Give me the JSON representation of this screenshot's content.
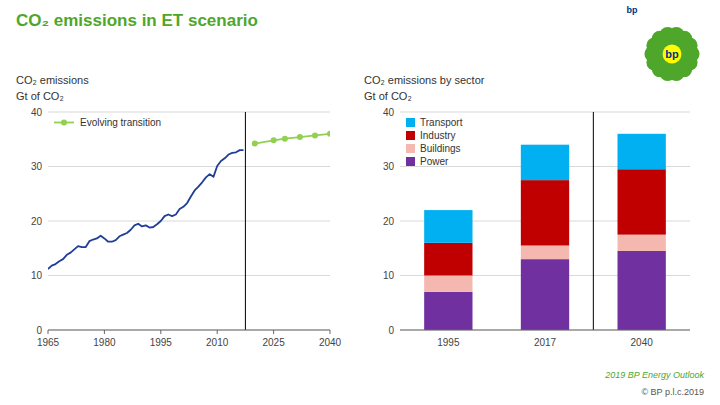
{
  "title": "CO₂ emissions in ET scenario",
  "annotations": [
    "bp",
    "bp",
    "2019 BP Energy Outlook",
    "© BP p.l.c.2019"
  ],
  "chart_data": [
    {
      "type": "line",
      "subtitle": "CO₂ emissions",
      "ylabel": "Gt of CO₂",
      "series": [
        {
          "color": "#1f3d99",
          "x": [
            1965,
            1966,
            1967,
            1968,
            1969,
            1970,
            1971,
            1972,
            1973,
            1974,
            1975,
            1976,
            1977,
            1978,
            1979,
            1980,
            1981,
            1982,
            1983,
            1984,
            1985,
            1986,
            1987,
            1988,
            1989,
            1990,
            1991,
            1992,
            1993,
            1994,
            1995,
            1996,
            1997,
            1998,
            1999,
            2000,
            2001,
            2002,
            2003,
            2004,
            2005,
            2006,
            2007,
            2008,
            2009,
            2010,
            2011,
            2012,
            2013,
            2014,
            2015,
            2016,
            2017
          ],
          "values": [
            11.2,
            11.8,
            12.1,
            12.6,
            13.0,
            13.8,
            14.2,
            14.8,
            15.4,
            15.2,
            15.2,
            16.3,
            16.6,
            16.8,
            17.3,
            16.8,
            16.2,
            16.2,
            16.5,
            17.2,
            17.5,
            17.8,
            18.4,
            19.2,
            19.5,
            19.0,
            19.2,
            18.8,
            18.9,
            19.4,
            20.0,
            20.9,
            21.2,
            20.9,
            21.2,
            22.2,
            22.6,
            23.3,
            24.5,
            25.6,
            26.3,
            27.1,
            28.0,
            28.6,
            28.1,
            30.1,
            31.0,
            31.5,
            32.2,
            32.5,
            32.6,
            33.0,
            33.0
          ]
        },
        {
          "name": "Evolving transition",
          "color": "#92d050",
          "marker": "circle",
          "x": [
            2020,
            2025,
            2028,
            2032,
            2036,
            2040
          ],
          "values": [
            34.2,
            34.8,
            35.1,
            35.4,
            35.7,
            36.0
          ]
        }
      ],
      "vline_x": 2017.5,
      "xlim": [
        1965,
        2040
      ],
      "xticks": [
        1965,
        1980,
        1995,
        2010,
        2025,
        2040
      ],
      "ylim": [
        0,
        40
      ],
      "yticks": [
        0,
        10,
        20,
        30,
        40
      ],
      "grid": true,
      "legend": "upper left"
    },
    {
      "type": "bar",
      "subtitle": "CO₂ emissions by sector",
      "ylabel": "Gt of CO₂",
      "stacked": true,
      "categories": [
        "1995",
        "2017",
        "2040"
      ],
      "series": [
        {
          "name": "Power",
          "color": "#7030a0",
          "values": [
            7.0,
            13.0,
            14.5
          ]
        },
        {
          "name": "Buildings",
          "color": "#f4b8b0",
          "values": [
            3.0,
            2.5,
            3.0
          ]
        },
        {
          "name": "Industry",
          "color": "#c00000",
          "values": [
            6.0,
            12.0,
            12.0
          ]
        },
        {
          "name": "Transport",
          "color": "#00b0f0",
          "values": [
            6.0,
            6.5,
            6.5
          ]
        }
      ],
      "ylim": [
        0,
        40
      ],
      "yticks": [
        0,
        10,
        20,
        30,
        40
      ],
      "grid": true,
      "legend": "upper left"
    }
  ]
}
